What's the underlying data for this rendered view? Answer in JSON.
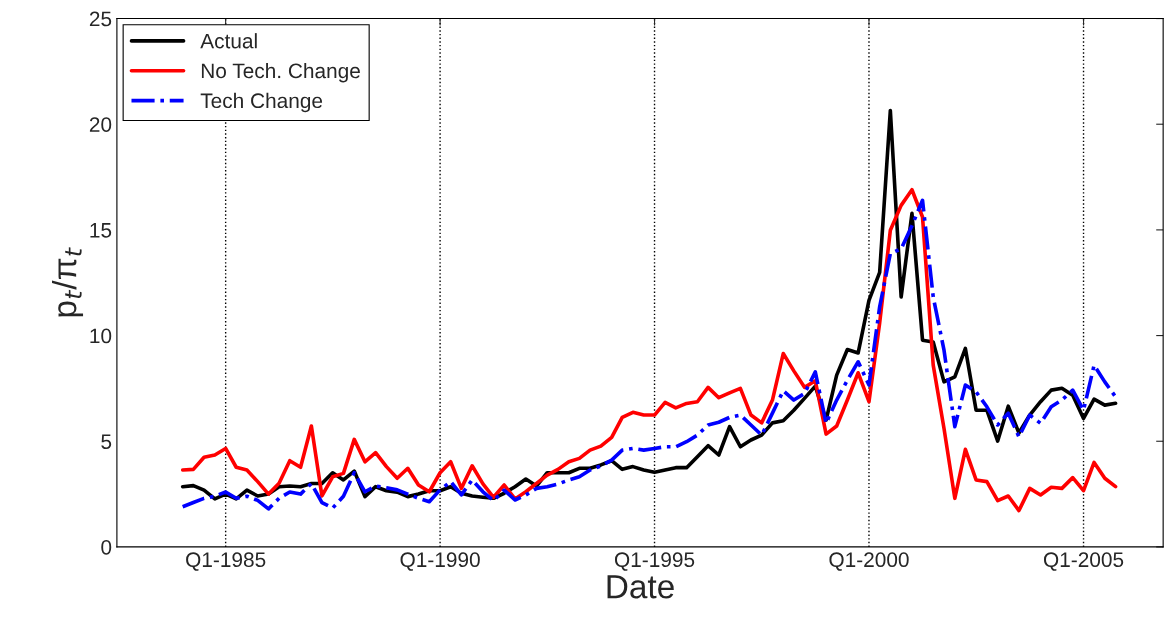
{
  "chart_data": {
    "type": "line",
    "xlabel": "Date",
    "ylabel": "p$_{t}$/π$_{t}$",
    "x": [
      "1984-01",
      "1984-04",
      "1984-07",
      "1984-10",
      "1985-01",
      "1985-04",
      "1985-07",
      "1985-10",
      "1986-01",
      "1986-04",
      "1986-07",
      "1986-10",
      "1987-01",
      "1987-04",
      "1987-07",
      "1987-10",
      "1988-01",
      "1988-04",
      "1988-07",
      "1988-10",
      "1989-01",
      "1989-04",
      "1989-07",
      "1989-10",
      "1990-01",
      "1990-04",
      "1990-07",
      "1990-10",
      "1991-01",
      "1991-04",
      "1991-07",
      "1991-10",
      "1992-01",
      "1992-04",
      "1992-07",
      "1992-10",
      "1993-01",
      "1993-04",
      "1993-07",
      "1993-10",
      "1994-01",
      "1994-04",
      "1994-07",
      "1994-10",
      "1995-01",
      "1995-04",
      "1995-07",
      "1995-10",
      "1996-01",
      "1996-04",
      "1996-07",
      "1996-10",
      "1997-01",
      "1997-04",
      "1997-07",
      "1997-10",
      "1998-01",
      "1998-04",
      "1998-07",
      "1998-10",
      "1999-01",
      "1999-04",
      "1999-07",
      "1999-10",
      "2000-01",
      "2000-04",
      "2000-07",
      "2000-10",
      "2001-01",
      "2001-04",
      "2001-07",
      "2001-10",
      "2002-01",
      "2002-04",
      "2002-07",
      "2002-10",
      "2003-01",
      "2003-04",
      "2003-07",
      "2003-10",
      "2004-01",
      "2004-04",
      "2004-07",
      "2004-10",
      "2005-01",
      "2005-04",
      "2005-07",
      "2005-10"
    ],
    "series": [
      {
        "name": "Actual",
        "color": "#000000",
        "line_style": "solid",
        "values": [
          2.85,
          2.9,
          2.69,
          2.27,
          2.5,
          2.27,
          2.69,
          2.41,
          2.5,
          2.85,
          2.88,
          2.85,
          3.0,
          3.0,
          3.51,
          3.17,
          3.59,
          2.38,
          2.85,
          2.66,
          2.59,
          2.38,
          2.5,
          2.66,
          2.66,
          2.85,
          2.54,
          2.41,
          2.35,
          2.3,
          2.54,
          2.85,
          3.21,
          2.88,
          3.51,
          3.51,
          3.51,
          3.72,
          3.72,
          3.88,
          4.08,
          3.67,
          3.8,
          3.64,
          3.53,
          3.64,
          3.75,
          3.75,
          4.27,
          4.79,
          4.35,
          5.69,
          4.74,
          5.06,
          5.29,
          5.87,
          5.97,
          6.47,
          7.03,
          7.61,
          6.0,
          8.13,
          9.34,
          9.18,
          11.67,
          12.99,
          20.65,
          11.83,
          15.78,
          9.78,
          9.7,
          7.81,
          8.05,
          9.39,
          6.47,
          6.47,
          5.01,
          6.66,
          5.39,
          6.24,
          6.87,
          7.42,
          7.51,
          7.18,
          6.08,
          6.99,
          6.71,
          6.8
        ]
      },
      {
        "name": "No Tech. Change",
        "color": "#ff0000",
        "line_style": "solid",
        "values": [
          3.64,
          3.67,
          4.24,
          4.35,
          4.66,
          3.77,
          3.64,
          3.09,
          2.5,
          3.01,
          4.08,
          3.77,
          5.72,
          2.41,
          3.32,
          3.48,
          5.09,
          4.03,
          4.46,
          3.8,
          3.25,
          3.72,
          2.93,
          2.61,
          3.51,
          4.03,
          2.77,
          3.84,
          2.98,
          2.35,
          2.93,
          2.27,
          2.61,
          3.01,
          3.4,
          3.67,
          4.03,
          4.19,
          4.58,
          4.77,
          5.18,
          6.13,
          6.37,
          6.24,
          6.24,
          6.84,
          6.58,
          6.79,
          6.87,
          7.55,
          7.06,
          7.29,
          7.5,
          6.24,
          5.87,
          6.95,
          9.15,
          8.33,
          7.55,
          7.86,
          5.34,
          5.72,
          6.95,
          8.24,
          6.87,
          10.59,
          14.98,
          16.16,
          16.9,
          15.61,
          8.6,
          5.6,
          2.3,
          4.62,
          3.17,
          3.09,
          2.19,
          2.41,
          1.72,
          2.77,
          2.46,
          2.82,
          2.77,
          3.28,
          2.66,
          4.0,
          3.25,
          2.85
        ]
      },
      {
        "name": "Tech Change",
        "color": "#0000ff",
        "line_style": "dashdot",
        "values": [
          1.9,
          2.1,
          2.3,
          2.4,
          2.6,
          2.3,
          2.4,
          2.2,
          1.8,
          2.3,
          2.6,
          2.5,
          3.0,
          2.1,
          1.84,
          2.4,
          3.51,
          2.61,
          2.88,
          2.8,
          2.7,
          2.5,
          2.3,
          2.14,
          2.7,
          3.09,
          2.46,
          3.17,
          2.61,
          2.19,
          2.69,
          2.22,
          2.46,
          2.77,
          2.85,
          2.98,
          3.17,
          3.32,
          3.64,
          3.83,
          4.11,
          4.58,
          4.66,
          4.58,
          4.66,
          4.74,
          4.74,
          4.98,
          5.29,
          5.77,
          5.9,
          6.13,
          6.24,
          5.77,
          5.29,
          6.33,
          7.39,
          6.95,
          7.26,
          8.28,
          5.85,
          6.95,
          7.89,
          8.76,
          7.66,
          11.36,
          13.88,
          14.1,
          15.2,
          16.4,
          11.83,
          9.31,
          5.69,
          7.66,
          7.34,
          6.63,
          5.77,
          6.33,
          5.21,
          6.24,
          5.85,
          6.63,
          6.95,
          7.42,
          6.47,
          8.6,
          7.81,
          7.1
        ]
      }
    ],
    "xlim": [
      "1982-06-20",
      "2006-11-10"
    ],
    "xticks": [
      {
        "value": "1985-01",
        "label": "Q1-1985"
      },
      {
        "value": "1990-01",
        "label": "Q1-1990"
      },
      {
        "value": "1995-01",
        "label": "Q1-1995"
      },
      {
        "value": "2000-01",
        "label": "Q1-2000"
      },
      {
        "value": "2005-01",
        "label": "Q1-2005"
      }
    ],
    "ylim": [
      0,
      25
    ],
    "yticks": [
      0,
      5,
      10,
      15,
      20,
      25
    ],
    "grid": "x",
    "legend": "top left",
    "marker": "none"
  }
}
